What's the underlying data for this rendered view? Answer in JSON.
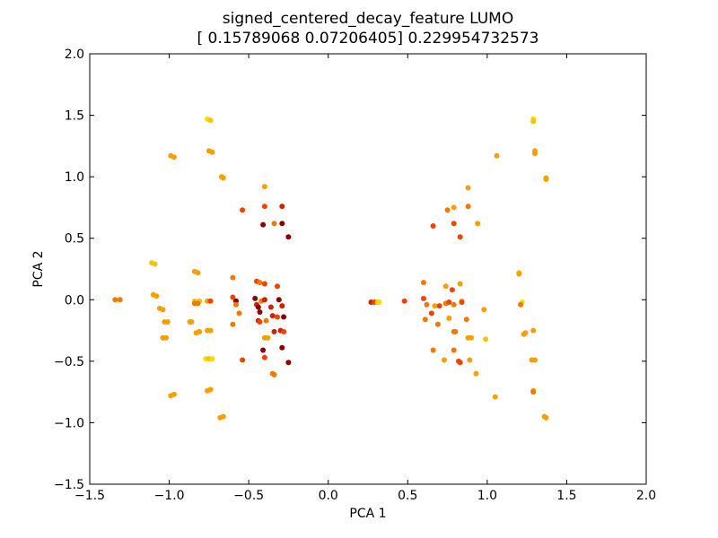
{
  "chart_data": {
    "type": "scatter",
    "title": "signed_centered_decay_feature LUMO",
    "subtitle": "[ 0.15789068  0.07206405] 0.229954732573",
    "xlabel": "PCA 1",
    "ylabel": "PCA 2",
    "xlim": [
      -1.5,
      2.0
    ],
    "ylim": [
      -1.5,
      2.0
    ],
    "xticks": [
      "−1.5",
      "−1.0",
      "−0.5",
      "0.0",
      "0.5",
      "1.0",
      "1.5",
      "2.0"
    ],
    "yticks": [
      "−1.5",
      "−1.0",
      "−0.5",
      "0.0",
      "0.5",
      "1.0",
      "1.5",
      "2.0"
    ],
    "grid": false,
    "colormap": [
      "#8b0000",
      "#cc2200",
      "#ee4400",
      "#f07a00",
      "#f5a000",
      "#f7c400",
      "#f5dc00"
    ],
    "points": [
      {
        "x": -0.76,
        "y": 1.47,
        "c": 6
      },
      {
        "x": -0.74,
        "y": 1.46,
        "c": 5
      },
      {
        "x": -0.75,
        "y": 1.21,
        "c": 4
      },
      {
        "x": -0.73,
        "y": 1.2,
        "c": 4
      },
      {
        "x": -0.99,
        "y": 1.17,
        "c": 4
      },
      {
        "x": -0.97,
        "y": 1.16,
        "c": 4
      },
      {
        "x": -0.67,
        "y": 1.0,
        "c": 4
      },
      {
        "x": -0.66,
        "y": 0.99,
        "c": 4
      },
      {
        "x": -0.4,
        "y": 0.92,
        "c": 4
      },
      {
        "x": -0.54,
        "y": 0.73,
        "c": 2
      },
      {
        "x": -0.4,
        "y": 0.76,
        "c": 2
      },
      {
        "x": -0.29,
        "y": 0.76,
        "c": 1
      },
      {
        "x": -0.34,
        "y": 0.62,
        "c": 3
      },
      {
        "x": -0.41,
        "y": 0.61,
        "c": 0
      },
      {
        "x": -0.29,
        "y": 0.62,
        "c": 0
      },
      {
        "x": -0.25,
        "y": 0.51,
        "c": 0
      },
      {
        "x": -1.11,
        "y": 0.3,
        "c": 5
      },
      {
        "x": -1.09,
        "y": 0.29,
        "c": 5
      },
      {
        "x": -0.84,
        "y": 0.23,
        "c": 4
      },
      {
        "x": -0.82,
        "y": 0.22,
        "c": 4
      },
      {
        "x": -1.1,
        "y": 0.04,
        "c": 4
      },
      {
        "x": -1.08,
        "y": 0.03,
        "c": 4
      },
      {
        "x": -0.6,
        "y": 0.18,
        "c": 3
      },
      {
        "x": -0.45,
        "y": 0.15,
        "c": 2
      },
      {
        "x": -0.43,
        "y": 0.14,
        "c": 3
      },
      {
        "x": -0.4,
        "y": 0.13,
        "c": 2
      },
      {
        "x": -0.32,
        "y": 0.11,
        "c": 2
      },
      {
        "x": -1.34,
        "y": 0.0,
        "c": 3
      },
      {
        "x": -1.31,
        "y": 0.0,
        "c": 3
      },
      {
        "x": -0.84,
        "y": -0.01,
        "c": 5
      },
      {
        "x": -0.81,
        "y": -0.01,
        "c": 5
      },
      {
        "x": -0.84,
        "y": -0.03,
        "c": 3
      },
      {
        "x": -0.82,
        "y": -0.03,
        "c": 3
      },
      {
        "x": -0.76,
        "y": -0.01,
        "c": 4
      },
      {
        "x": -0.74,
        "y": -0.01,
        "c": 2
      },
      {
        "x": -0.6,
        "y": 0.02,
        "c": 2
      },
      {
        "x": -0.58,
        "y": -0.01,
        "c": 0
      },
      {
        "x": -0.58,
        "y": -0.04,
        "c": 3
      },
      {
        "x": -0.46,
        "y": 0.01,
        "c": 0
      },
      {
        "x": -0.42,
        "y": -0.01,
        "c": 3
      },
      {
        "x": -0.4,
        "y": 0.0,
        "c": 1
      },
      {
        "x": -0.45,
        "y": -0.04,
        "c": 1
      },
      {
        "x": -0.44,
        "y": -0.06,
        "c": 0
      },
      {
        "x": -0.36,
        "y": -0.06,
        "c": 1
      },
      {
        "x": -0.31,
        "y": 0.0,
        "c": 0
      },
      {
        "x": -0.29,
        "y": -0.05,
        "c": 1
      },
      {
        "x": -1.06,
        "y": -0.07,
        "c": 4
      },
      {
        "x": -1.04,
        "y": -0.08,
        "c": 4
      },
      {
        "x": -0.43,
        "y": -0.1,
        "c": 0
      },
      {
        "x": -0.56,
        "y": -0.11,
        "c": 3
      },
      {
        "x": -0.35,
        "y": -0.13,
        "c": 1
      },
      {
        "x": -0.32,
        "y": -0.14,
        "c": 2
      },
      {
        "x": -0.28,
        "y": -0.14,
        "c": 0
      },
      {
        "x": -1.03,
        "y": -0.18,
        "c": 4
      },
      {
        "x": -1.01,
        "y": -0.18,
        "c": 4
      },
      {
        "x": -0.87,
        "y": -0.18,
        "c": 4
      },
      {
        "x": -0.86,
        "y": -0.18,
        "c": 4
      },
      {
        "x": -0.6,
        "y": -0.2,
        "c": 3
      },
      {
        "x": -0.44,
        "y": -0.17,
        "c": 1
      },
      {
        "x": -0.43,
        "y": -0.18,
        "c": 2
      },
      {
        "x": -0.39,
        "y": -0.17,
        "c": 3
      },
      {
        "x": -0.76,
        "y": -0.25,
        "c": 4
      },
      {
        "x": -0.74,
        "y": -0.25,
        "c": 4
      },
      {
        "x": -0.83,
        "y": -0.27,
        "c": 4
      },
      {
        "x": -0.81,
        "y": -0.26,
        "c": 4
      },
      {
        "x": -0.34,
        "y": -0.26,
        "c": 1
      },
      {
        "x": -0.3,
        "y": -0.25,
        "c": 1
      },
      {
        "x": -0.28,
        "y": -0.26,
        "c": 2
      },
      {
        "x": -1.04,
        "y": -0.31,
        "c": 4
      },
      {
        "x": -1.02,
        "y": -0.31,
        "c": 4
      },
      {
        "x": -0.4,
        "y": -0.31,
        "c": 4
      },
      {
        "x": -0.38,
        "y": -0.31,
        "c": 4
      },
      {
        "x": -0.41,
        "y": -0.41,
        "c": 0
      },
      {
        "x": -0.29,
        "y": -0.39,
        "c": 0
      },
      {
        "x": -0.4,
        "y": -0.47,
        "c": 2
      },
      {
        "x": -0.54,
        "y": -0.49,
        "c": 2
      },
      {
        "x": -0.77,
        "y": -0.48,
        "c": 6
      },
      {
        "x": -0.75,
        "y": -0.48,
        "c": 5
      },
      {
        "x": -0.73,
        "y": -0.48,
        "c": 6
      },
      {
        "x": -0.25,
        "y": -0.51,
        "c": 0
      },
      {
        "x": -0.35,
        "y": -0.6,
        "c": 3
      },
      {
        "x": -0.34,
        "y": -0.61,
        "c": 3
      },
      {
        "x": -0.76,
        "y": -0.74,
        "c": 4
      },
      {
        "x": -0.74,
        "y": -0.73,
        "c": 4
      },
      {
        "x": -0.99,
        "y": -0.78,
        "c": 4
      },
      {
        "x": -0.97,
        "y": -0.77,
        "c": 4
      },
      {
        "x": -0.68,
        "y": -0.96,
        "c": 4
      },
      {
        "x": -0.66,
        "y": -0.95,
        "c": 4
      },
      {
        "x": 1.29,
        "y": 1.47,
        "c": 6
      },
      {
        "x": 1.29,
        "y": 1.45,
        "c": 5
      },
      {
        "x": 1.3,
        "y": 1.21,
        "c": 4
      },
      {
        "x": 1.3,
        "y": 1.19,
        "c": 4
      },
      {
        "x": 1.06,
        "y": 1.17,
        "c": 4
      },
      {
        "x": 1.37,
        "y": 0.99,
        "c": 4
      },
      {
        "x": 1.37,
        "y": 0.98,
        "c": 4
      },
      {
        "x": 0.88,
        "y": 0.91,
        "c": 4
      },
      {
        "x": 0.75,
        "y": 0.73,
        "c": 3
      },
      {
        "x": 0.79,
        "y": 0.75,
        "c": 4
      },
      {
        "x": 0.88,
        "y": 0.76,
        "c": 3
      },
      {
        "x": 0.66,
        "y": 0.6,
        "c": 2
      },
      {
        "x": 0.79,
        "y": 0.62,
        "c": 2
      },
      {
        "x": 0.94,
        "y": 0.62,
        "c": 4
      },
      {
        "x": 0.83,
        "y": 0.51,
        "c": 2
      },
      {
        "x": 1.2,
        "y": 0.22,
        "c": 5
      },
      {
        "x": 1.2,
        "y": 0.21,
        "c": 4
      },
      {
        "x": 0.6,
        "y": 0.14,
        "c": 3
      },
      {
        "x": 0.74,
        "y": 0.11,
        "c": 4
      },
      {
        "x": 0.83,
        "y": 0.13,
        "c": 4
      },
      {
        "x": 0.78,
        "y": 0.08,
        "c": 2
      },
      {
        "x": 0.27,
        "y": -0.02,
        "c": 1
      },
      {
        "x": 0.29,
        "y": -0.02,
        "c": 2
      },
      {
        "x": 0.31,
        "y": -0.02,
        "c": 5
      },
      {
        "x": 0.32,
        "y": -0.02,
        "c": 6
      },
      {
        "x": 0.48,
        "y": -0.01,
        "c": 2
      },
      {
        "x": 0.6,
        "y": 0.01,
        "c": 2
      },
      {
        "x": 0.62,
        "y": -0.04,
        "c": 3
      },
      {
        "x": 0.67,
        "y": -0.05,
        "c": 4
      },
      {
        "x": 0.7,
        "y": -0.05,
        "c": 2
      },
      {
        "x": 0.74,
        "y": -0.03,
        "c": 3
      },
      {
        "x": 0.76,
        "y": -0.02,
        "c": 2
      },
      {
        "x": 0.79,
        "y": -0.04,
        "c": 3
      },
      {
        "x": 0.84,
        "y": -0.01,
        "c": 5
      },
      {
        "x": 0.84,
        "y": -0.02,
        "c": 2
      },
      {
        "x": 1.22,
        "y": -0.02,
        "c": 6
      },
      {
        "x": 1.21,
        "y": -0.04,
        "c": 3
      },
      {
        "x": 0.98,
        "y": -0.08,
        "c": 4
      },
      {
        "x": 0.65,
        "y": -0.11,
        "c": 2
      },
      {
        "x": 0.61,
        "y": -0.16,
        "c": 3
      },
      {
        "x": 0.76,
        "y": -0.15,
        "c": 4
      },
      {
        "x": 0.69,
        "y": -0.2,
        "c": 3
      },
      {
        "x": 0.87,
        "y": -0.16,
        "c": 3
      },
      {
        "x": 1.24,
        "y": -0.27,
        "c": 4
      },
      {
        "x": 1.23,
        "y": -0.28,
        "c": 4
      },
      {
        "x": 1.29,
        "y": -0.25,
        "c": 4
      },
      {
        "x": 0.79,
        "y": -0.26,
        "c": 3
      },
      {
        "x": 0.8,
        "y": -0.26,
        "c": 3
      },
      {
        "x": 0.88,
        "y": -0.31,
        "c": 4
      },
      {
        "x": 0.9,
        "y": -0.31,
        "c": 4
      },
      {
        "x": 0.99,
        "y": -0.32,
        "c": 5
      },
      {
        "x": 0.66,
        "y": -0.41,
        "c": 3
      },
      {
        "x": 0.79,
        "y": -0.41,
        "c": 3
      },
      {
        "x": 0.73,
        "y": -0.49,
        "c": 4
      },
      {
        "x": 0.82,
        "y": -0.5,
        "c": 2
      },
      {
        "x": 0.83,
        "y": -0.51,
        "c": 2
      },
      {
        "x": 0.89,
        "y": -0.49,
        "c": 4
      },
      {
        "x": 1.28,
        "y": -0.49,
        "c": 4
      },
      {
        "x": 1.3,
        "y": -0.49,
        "c": 4
      },
      {
        "x": 0.93,
        "y": -0.6,
        "c": 4
      },
      {
        "x": 1.29,
        "y": -0.74,
        "c": 4
      },
      {
        "x": 1.29,
        "y": -0.75,
        "c": 3
      },
      {
        "x": 1.05,
        "y": -0.79,
        "c": 4
      },
      {
        "x": 1.36,
        "y": -0.95,
        "c": 4
      },
      {
        "x": 1.37,
        "y": -0.96,
        "c": 4
      }
    ]
  }
}
